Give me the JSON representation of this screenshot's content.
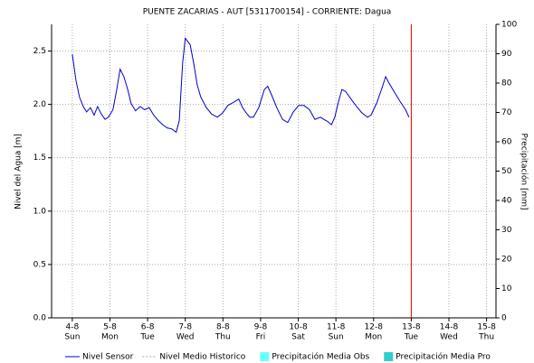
{
  "chart_data": {
    "type": "line",
    "title": "PUENTE ZACARIAS - AUT   [5311700154] - CORRIENTE: Dagua",
    "y_label": "Nivel del Agua [m]",
    "y2_label": "Precipitación [mm]",
    "xlim": [
      3.45,
      15.25
    ],
    "xticks": [
      {
        "value": 4,
        "label": "4-8"
      },
      {
        "value": 5,
        "label": "5-8"
      },
      {
        "value": 6,
        "label": "6-8"
      },
      {
        "value": 7,
        "label": "7-8"
      },
      {
        "value": 8,
        "label": "8-8"
      },
      {
        "value": 9,
        "label": "9-8"
      },
      {
        "value": 10,
        "label": "10-8"
      },
      {
        "value": 11,
        "label": "11-8"
      },
      {
        "value": 12,
        "label": "12-8"
      },
      {
        "value": 13,
        "label": "13-8"
      },
      {
        "value": 14,
        "label": "14-8"
      },
      {
        "value": 15,
        "label": "15-8"
      }
    ],
    "xtick_days": [
      "Sun",
      "Mon",
      "Tue",
      "Wed",
      "Thu",
      "Fri",
      "Sat",
      "Sun",
      "Mon",
      "Tue",
      "Wed",
      "Thu"
    ],
    "ylim": [
      0,
      2.75
    ],
    "yticks": [
      {
        "value": 0,
        "label": "0.0"
      },
      0.5,
      {
        "value": 1,
        "label": "1.0"
      },
      1.5,
      {
        "value": 2,
        "label": "2.0"
      },
      2.5
    ],
    "y2lim": [
      0,
      100
    ],
    "y2ticks": [
      0,
      10,
      20,
      30,
      40,
      50,
      60,
      70,
      80,
      90,
      100
    ],
    "grid": true,
    "marker_x": 13,
    "marker_color": "#e00000",
    "series": [
      {
        "name": "Nivel Sensor",
        "color": "#0000cc",
        "x": [
          4.0,
          4.1,
          4.19,
          4.29,
          4.38,
          4.48,
          4.58,
          4.67,
          4.77,
          4.87,
          4.96,
          5.08,
          5.18,
          5.27,
          5.37,
          5.47,
          5.56,
          5.68,
          5.8,
          5.92,
          6.04,
          6.16,
          6.28,
          6.4,
          6.52,
          6.64,
          6.76,
          6.84,
          6.93,
          7.0,
          7.13,
          7.22,
          7.32,
          7.41,
          7.56,
          7.7,
          7.85,
          7.99,
          8.13,
          8.28,
          8.42,
          8.52,
          8.62,
          8.71,
          8.81,
          8.95,
          9.1,
          9.19,
          9.29,
          9.43,
          9.58,
          9.72,
          9.87,
          10.01,
          10.15,
          10.3,
          10.44,
          10.59,
          10.68,
          10.78,
          10.88,
          10.97,
          11.07,
          11.16,
          11.26,
          11.4,
          11.55,
          11.69,
          11.84,
          11.93,
          12.08,
          12.22,
          12.32,
          12.41,
          12.56,
          12.7,
          12.85,
          12.94
        ],
        "values": [
          2.47,
          2.22,
          2.07,
          1.98,
          1.93,
          1.97,
          1.9,
          1.98,
          1.91,
          1.86,
          1.88,
          1.95,
          2.14,
          2.33,
          2.26,
          2.14,
          2.01,
          1.94,
          1.98,
          1.95,
          1.97,
          1.9,
          1.85,
          1.81,
          1.78,
          1.77,
          1.74,
          1.85,
          2.39,
          2.62,
          2.56,
          2.39,
          2.18,
          2.07,
          1.97,
          1.91,
          1.88,
          1.92,
          1.99,
          2.02,
          2.05,
          1.97,
          1.92,
          1.88,
          1.88,
          1.97,
          2.14,
          2.17,
          2.09,
          1.97,
          1.86,
          1.83,
          1.93,
          1.99,
          1.99,
          1.95,
          1.86,
          1.88,
          1.86,
          1.84,
          1.81,
          1.88,
          2.03,
          2.14,
          2.12,
          2.05,
          1.98,
          1.92,
          1.88,
          1.9,
          2.01,
          2.15,
          2.26,
          2.2,
          2.11,
          2.03,
          1.95,
          1.88
        ]
      }
    ],
    "legend_extra": [
      {
        "name": "Nivel Medio Historico",
        "color": "#aaaaaa",
        "kind": "dashed"
      },
      {
        "name": "Precipitación Media Obs",
        "color": "#66ffff",
        "kind": "box"
      },
      {
        "name": "Precipitación Media Pro",
        "color": "#33cccc",
        "kind": "box"
      }
    ]
  }
}
